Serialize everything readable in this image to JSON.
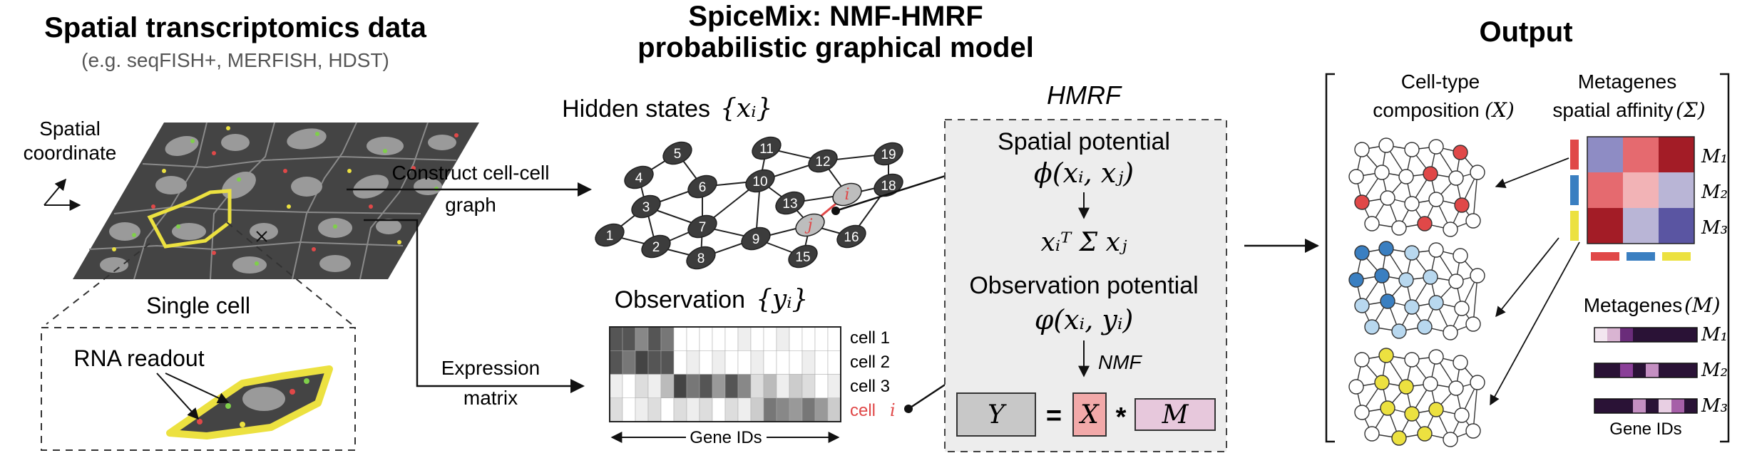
{
  "left": {
    "title": "Spatial transcriptomics data",
    "subtitle": "(e.g. seqFISH+, MERFISH, HDST)",
    "spatial_label_line1": "Spatial",
    "spatial_label_line2": "coordinate",
    "single_cell_label": "Single cell",
    "rna_readout_label": "RNA readout"
  },
  "arrows": {
    "construct_line1": "Construct cell-cell",
    "construct_line2": "graph",
    "expression_line1": "Expression",
    "expression_line2": "matrix"
  },
  "middle": {
    "title_line1": "SpiceMix: NMF-HMRF",
    "title_line2": "probabilistic graphical model",
    "hidden_states_label": "Hidden states",
    "hidden_states_math": "{xᵢ}",
    "observation_label": "Observation",
    "observation_math": "{yᵢ}",
    "node_labels": [
      "1",
      "2",
      "3",
      "4",
      "5",
      "6",
      "7",
      "8",
      "9",
      "10",
      "11",
      "12",
      "13",
      "i",
      "j",
      "15",
      "16",
      "18",
      "19"
    ],
    "cell_labels": [
      "cell 1",
      "cell 2",
      "cell 3"
    ],
    "cell_i_label": "cell",
    "cell_i_math": "i",
    "gene_ids_label": "Gene IDs"
  },
  "hmrf": {
    "title": "HMRF",
    "spatial_potential_label": "Spatial potential",
    "spatial_potential_math": "ϕ(xᵢ, xⱼ)",
    "quadratic_math": "xᵢᵀ Σ xⱼ",
    "observation_potential_label": "Observation potential",
    "observation_potential_math": "φ(xᵢ, yᵢ)",
    "nmf_label": "NMF",
    "eq_Y": "Y",
    "eq_equals": "=",
    "eq_X": "X",
    "eq_times": "*",
    "eq_M": "M"
  },
  "output": {
    "title": "Output",
    "celltype_line1": "Cell-type",
    "celltype_line2": "composition",
    "celltype_math": "(X)",
    "metagenes_affinity_line1": "Metagenes",
    "metagenes_affinity_line2": "spatial affinity",
    "metagenes_affinity_math": "(Σ)",
    "m_labels": [
      "M₁",
      "M₂",
      "M₃"
    ],
    "metagenes_label": "Metagenes",
    "metagenes_math": "(M)",
    "gene_ids_label": "Gene IDs"
  },
  "colors": {
    "red": "#e04848",
    "blue": "#3a7fc1",
    "yellow": "#ece140",
    "node_dark": "#3c3c3c",
    "tissue_dark": "#444444",
    "hmrf_bg": "#ededed",
    "Y_fill": "#c8c8c8",
    "X_fill": "#f2a9a9",
    "M_fill": "#e7c8dc"
  }
}
